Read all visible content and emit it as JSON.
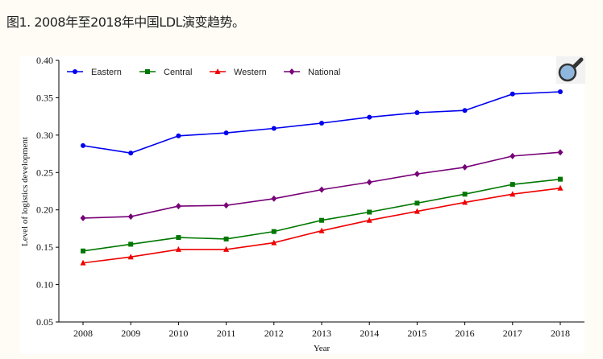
{
  "caption": "图1. 2008年至2018年中国LDL演变趋势。",
  "zoom_icon": "magnifier-icon",
  "chart_data": {
    "type": "line",
    "title": "",
    "xlabel": "Year",
    "ylabel": "Level of logistics development",
    "x": [
      2008,
      2009,
      2010,
      2011,
      2012,
      2013,
      2014,
      2015,
      2016,
      2017,
      2018
    ],
    "ylim": [
      0.05,
      0.4
    ],
    "yticks": [
      "0.05",
      "0.10",
      "0.15",
      "0.20",
      "0.25",
      "0.30",
      "0.35",
      "0.40"
    ],
    "xticks": [
      "2008",
      "2009",
      "2010",
      "2011",
      "2012",
      "2013",
      "2014",
      "2015",
      "2016",
      "2017",
      "2018"
    ],
    "grid": false,
    "legend": "top-left",
    "series": [
      {
        "name": "Eastern",
        "color": "#0000ee",
        "marker": "circle",
        "values": [
          0.286,
          0.276,
          0.299,
          0.303,
          0.309,
          0.316,
          0.324,
          0.33,
          0.333,
          0.355,
          0.358
        ]
      },
      {
        "name": "Central",
        "color": "#007700",
        "marker": "square",
        "values": [
          0.145,
          0.154,
          0.163,
          0.161,
          0.171,
          0.186,
          0.197,
          0.209,
          0.221,
          0.234,
          0.241
        ]
      },
      {
        "name": "Western",
        "color": "#ee0000",
        "marker": "triangle",
        "values": [
          0.129,
          0.137,
          0.147,
          0.147,
          0.156,
          0.172,
          0.186,
          0.198,
          0.21,
          0.221,
          0.229
        ]
      },
      {
        "name": "National",
        "color": "#770077",
        "marker": "diamond",
        "values": [
          0.189,
          0.191,
          0.205,
          0.206,
          0.215,
          0.227,
          0.237,
          0.248,
          0.257,
          0.272,
          0.277
        ]
      }
    ]
  }
}
